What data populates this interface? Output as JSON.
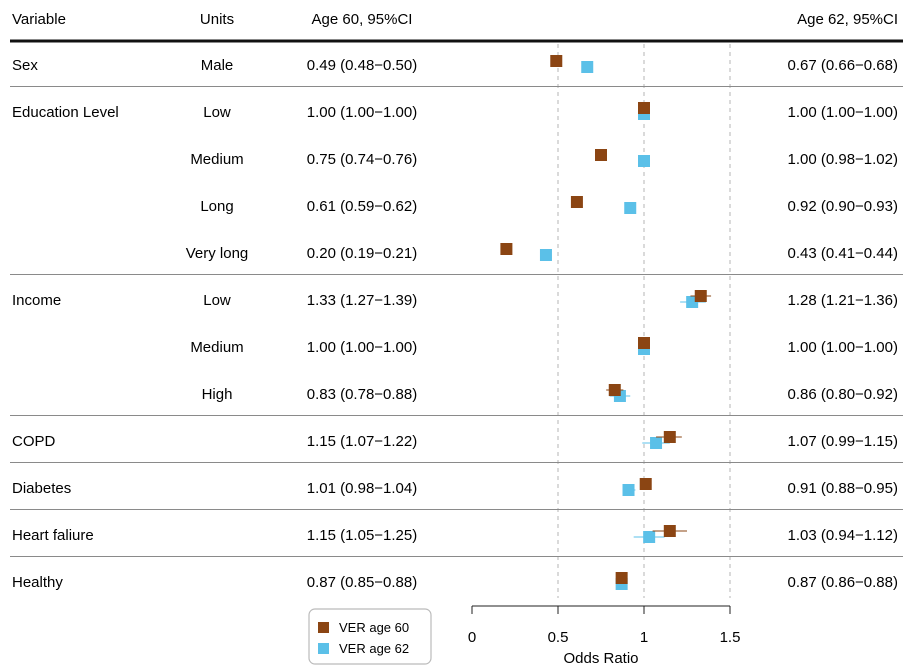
{
  "chart_data": {
    "type": "forest",
    "columns": {
      "variable": "Variable",
      "units": "Units",
      "left_ci": "Age 60, 95%CI",
      "right_ci": "Age 62, 95%CI"
    },
    "xlabel": "Odds Ratio",
    "xlim": [
      0,
      1.5
    ],
    "xticks": [
      {
        "value": 0,
        "label": "0"
      },
      {
        "value": 0.5,
        "label": "0.5"
      },
      {
        "value": 1,
        "label": "1"
      },
      {
        "value": 1.5,
        "label": "1.5"
      }
    ],
    "reference_lines": [
      0.5,
      1,
      1.5
    ],
    "colors": {
      "age60": "#8b4513",
      "age62": "#5bc0e8"
    },
    "legend": [
      {
        "name": "VER age 60",
        "color": "#8b4513"
      },
      {
        "name": "VER age 62",
        "color": "#5bc0e8"
      }
    ],
    "rows": [
      {
        "variable": "Sex",
        "unit": "Male",
        "age60": {
          "or": 0.49,
          "lo": 0.48,
          "hi": 0.5,
          "text": "0.49 (0.48−0.50)"
        },
        "age62": {
          "or": 0.67,
          "lo": 0.66,
          "hi": 0.68,
          "text": "0.67 (0.66−0.68)"
        }
      },
      {
        "variable": "Education Level",
        "unit": "Low",
        "age60": {
          "or": 1.0,
          "lo": 1.0,
          "hi": 1.0,
          "text": "1.00 (1.00−1.00)"
        },
        "age62": {
          "or": 1.0,
          "lo": 1.0,
          "hi": 1.0,
          "text": "1.00 (1.00−1.00)"
        }
      },
      {
        "variable": "",
        "unit": "Medium",
        "age60": {
          "or": 0.75,
          "lo": 0.74,
          "hi": 0.76,
          "text": "0.75 (0.74−0.76)"
        },
        "age62": {
          "or": 1.0,
          "lo": 0.98,
          "hi": 1.02,
          "text": "1.00 (0.98−1.02)"
        }
      },
      {
        "variable": "",
        "unit": "Long",
        "age60": {
          "or": 0.61,
          "lo": 0.59,
          "hi": 0.62,
          "text": "0.61 (0.59−0.62)"
        },
        "age62": {
          "or": 0.92,
          "lo": 0.9,
          "hi": 0.93,
          "text": "0.92 (0.90−0.93)"
        }
      },
      {
        "variable": "",
        "unit": "Very long",
        "age60": {
          "or": 0.2,
          "lo": 0.19,
          "hi": 0.21,
          "text": "0.20 (0.19−0.21)"
        },
        "age62": {
          "or": 0.43,
          "lo": 0.41,
          "hi": 0.44,
          "text": "0.43 (0.41−0.44)"
        }
      },
      {
        "variable": "Income",
        "unit": "Low",
        "age60": {
          "or": 1.33,
          "lo": 1.27,
          "hi": 1.39,
          "text": "1.33 (1.27−1.39)"
        },
        "age62": {
          "or": 1.28,
          "lo": 1.21,
          "hi": 1.36,
          "text": "1.28 (1.21−1.36)"
        }
      },
      {
        "variable": "",
        "unit": "Medium",
        "age60": {
          "or": 1.0,
          "lo": 1.0,
          "hi": 1.0,
          "text": "1.00 (1.00−1.00)"
        },
        "age62": {
          "or": 1.0,
          "lo": 1.0,
          "hi": 1.0,
          "text": "1.00 (1.00−1.00)"
        }
      },
      {
        "variable": "",
        "unit": "High",
        "age60": {
          "or": 0.83,
          "lo": 0.78,
          "hi": 0.88,
          "text": "0.83 (0.78−0.88)"
        },
        "age62": {
          "or": 0.86,
          "lo": 0.8,
          "hi": 0.92,
          "text": "0.86 (0.80−0.92)"
        }
      },
      {
        "variable": "COPD",
        "unit": "",
        "age60": {
          "or": 1.15,
          "lo": 1.07,
          "hi": 1.22,
          "text": "1.15 (1.07−1.22)"
        },
        "age62": {
          "or": 1.07,
          "lo": 0.99,
          "hi": 1.15,
          "text": "1.07 (0.99−1.15)"
        }
      },
      {
        "variable": "Diabetes",
        "unit": "",
        "age60": {
          "or": 1.01,
          "lo": 0.98,
          "hi": 1.04,
          "text": "1.01 (0.98−1.04)"
        },
        "age62": {
          "or": 0.91,
          "lo": 0.88,
          "hi": 0.95,
          "text": "0.91 (0.88−0.95)"
        }
      },
      {
        "variable": "Heart faliure",
        "unit": "",
        "age60": {
          "or": 1.15,
          "lo": 1.05,
          "hi": 1.25,
          "text": "1.15 (1.05−1.25)"
        },
        "age62": {
          "or": 1.03,
          "lo": 0.94,
          "hi": 1.12,
          "text": "1.03 (0.94−1.12)"
        }
      },
      {
        "variable": "Healthy",
        "unit": "",
        "age60": {
          "or": 0.87,
          "lo": 0.85,
          "hi": 0.88,
          "text": "0.87 (0.85−0.88)"
        },
        "age62": {
          "or": 0.87,
          "lo": 0.86,
          "hi": 0.88,
          "text": "0.87 (0.86−0.88)"
        }
      }
    ]
  }
}
